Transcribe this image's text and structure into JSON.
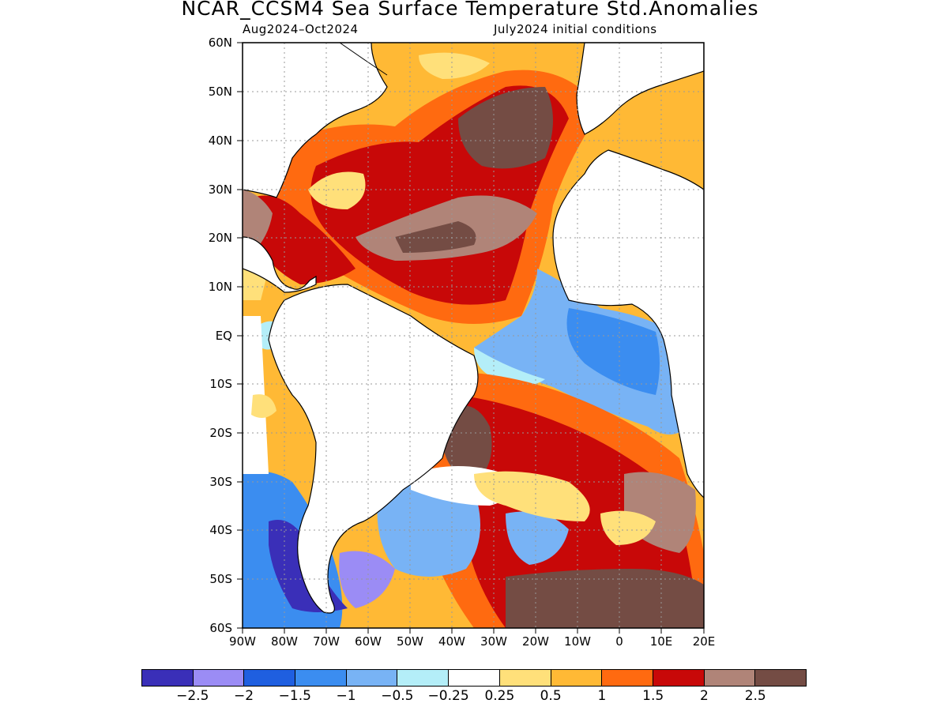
{
  "title": "NCAR_CCSM4 Sea Surface Temperature Std.Anomalies",
  "subtitle_left": "Aug2024–Oct2024",
  "subtitle_right": "July2024 initial conditions",
  "y_ticks": [
    "60N",
    "50N",
    "40N",
    "30N",
    "20N",
    "10N",
    "EQ",
    "10S",
    "20S",
    "30S",
    "40S",
    "50S",
    "60S"
  ],
  "x_ticks": [
    "90W",
    "80W",
    "70W",
    "60W",
    "50W",
    "40W",
    "30W",
    "20W",
    "10W",
    "0",
    "10E",
    "20E"
  ],
  "colorbar": {
    "colors": [
      "#3a2fb8",
      "#9b8cf5",
      "#1f5fe0",
      "#3b8df0",
      "#78b3f5",
      "#b4eef8",
      "#ffffff",
      "#ffe07a",
      "#ffb935",
      "#ff6a10",
      "#c80808",
      "#b08478",
      "#744c44"
    ],
    "labels": [
      "−2.5",
      "−2",
      "−1.5",
      "−1",
      "−0.5",
      "−0.25",
      "0.25",
      "0.5",
      "1",
      "1.5",
      "2",
      "2.5"
    ]
  }
}
